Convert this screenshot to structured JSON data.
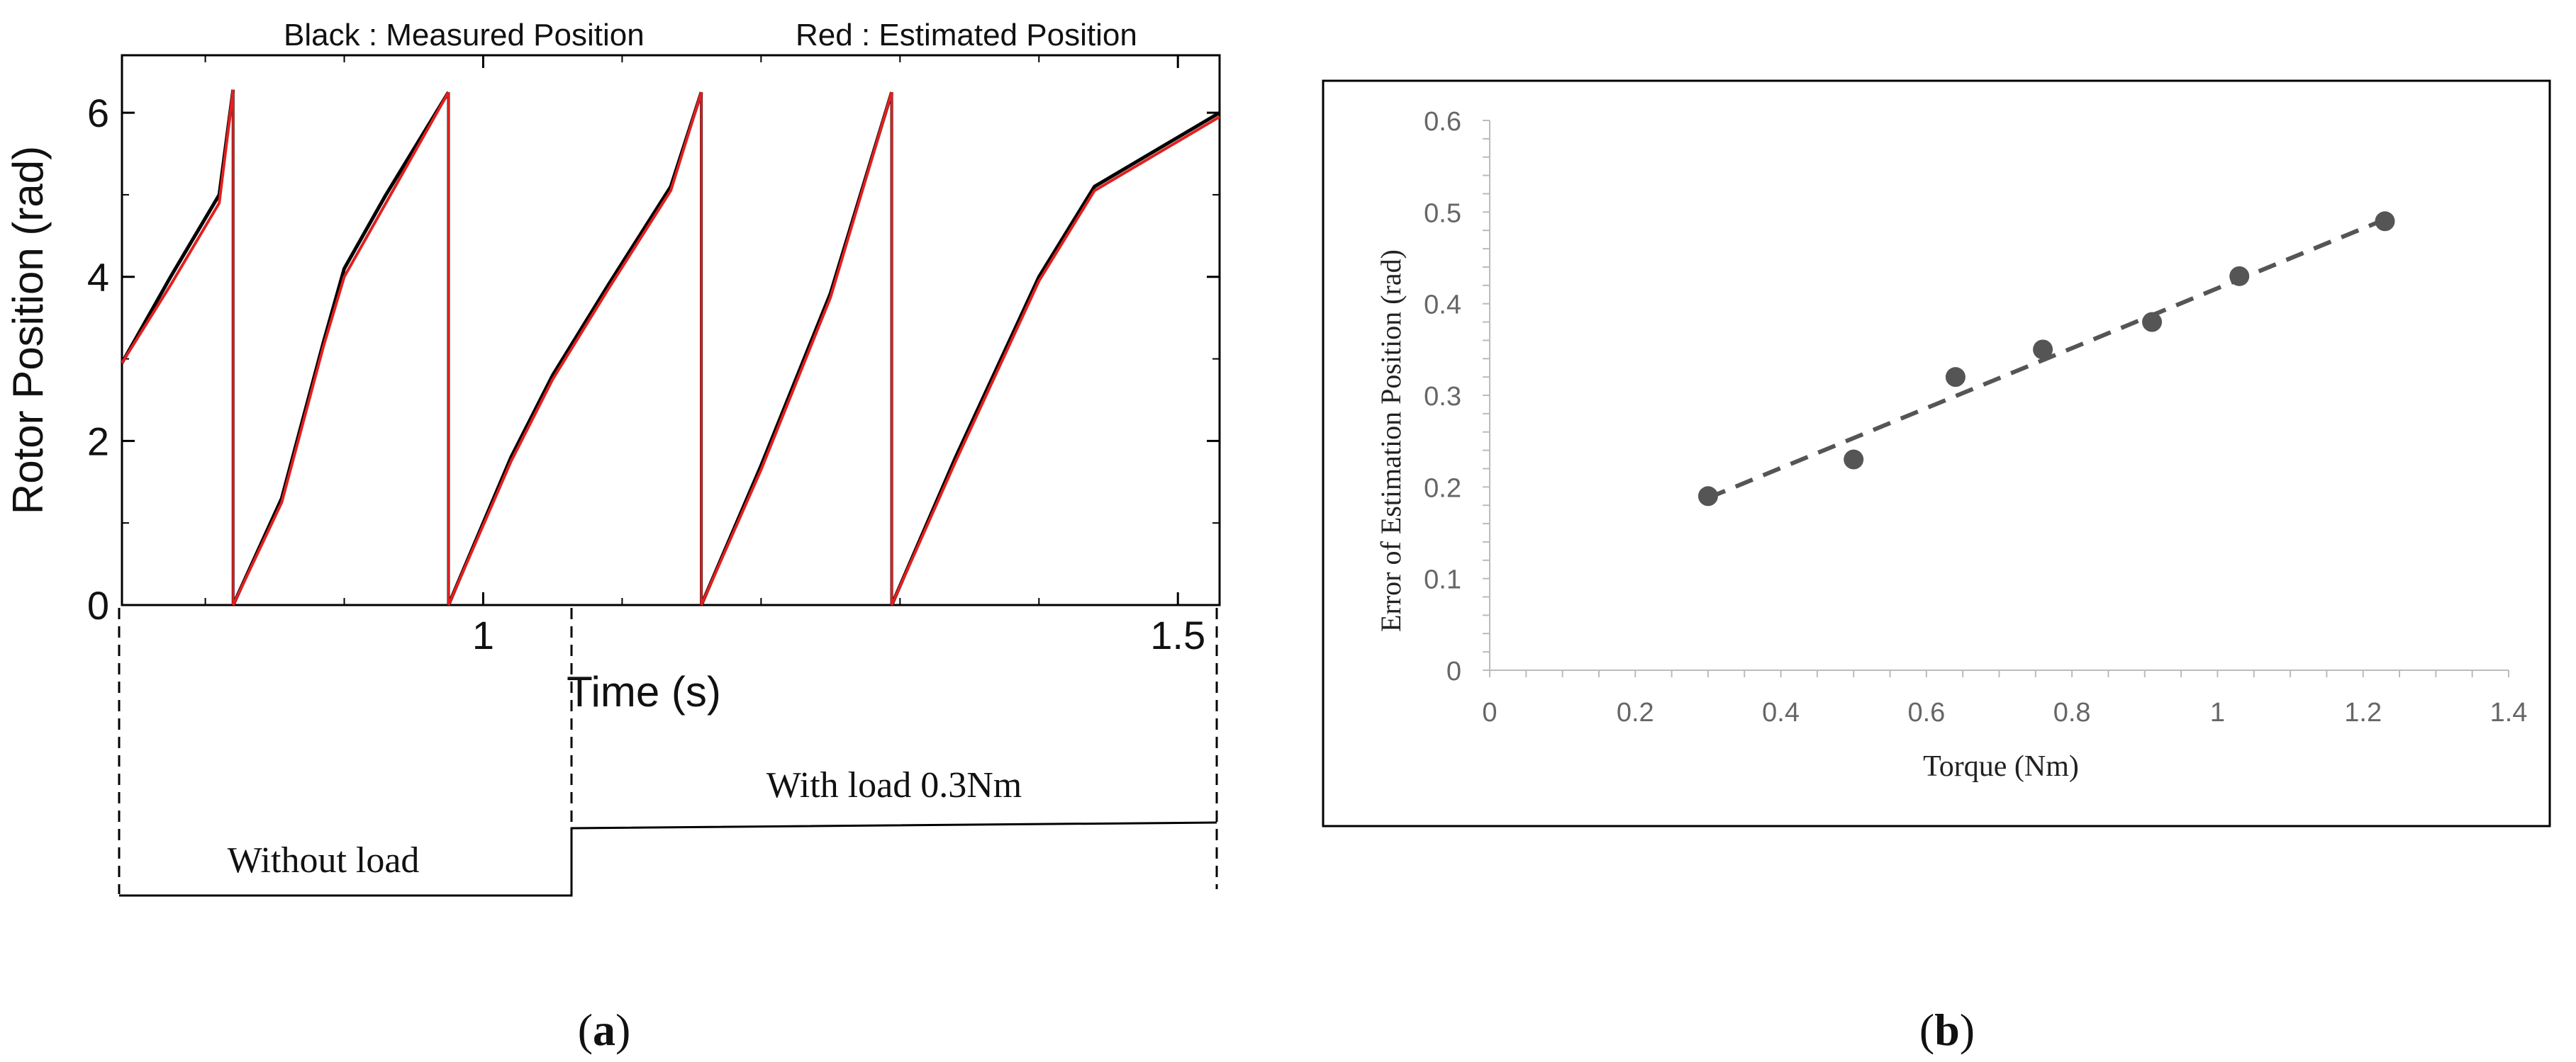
{
  "panel_labels": {
    "a_open": "(",
    "a_letter": "a",
    "a_close": ")",
    "b_open": "(",
    "b_letter": "b",
    "b_close": ")"
  },
  "chart_data": [
    {
      "type": "line",
      "legend": {
        "measured": "Black : Measured Position",
        "estimated": "Red : Estimated Position"
      },
      "xlabel": "Time (s)",
      "ylabel": "Rotor Position (rad)",
      "xlim": [
        0.74,
        1.53
      ],
      "ylim": [
        0,
        6.7
      ],
      "x_ticks": [
        1,
        1.5
      ],
      "x_tick_labels": [
        "1",
        "1.5"
      ],
      "y_ticks": [
        0,
        2,
        4,
        6
      ],
      "y_tick_labels": [
        "0",
        "2",
        "4",
        "6"
      ],
      "series": [
        {
          "color": "#000000",
          "segments": [
            [
              [
                0.74,
                2.95
              ],
              [
                0.775,
                4.0
              ],
              [
                0.81,
                5.0
              ],
              [
                0.82,
                6.28
              ]
            ],
            [
              [
                0.82,
                0.0
              ],
              [
                0.855,
                1.3
              ],
              [
                0.885,
                3.2
              ],
              [
                0.9,
                4.1
              ],
              [
                0.93,
                5.0
              ],
              [
                0.975,
                6.25
              ]
            ],
            [
              [
                0.975,
                0.0
              ],
              [
                1.02,
                1.8
              ],
              [
                1.05,
                2.8
              ],
              [
                1.09,
                3.9
              ],
              [
                1.135,
                5.1
              ],
              [
                1.157,
                6.25
              ]
            ],
            [
              [
                1.157,
                0.0
              ],
              [
                1.2,
                1.7
              ],
              [
                1.25,
                3.8
              ],
              [
                1.294,
                6.25
              ]
            ],
            [
              [
                1.294,
                0.0
              ],
              [
                1.34,
                1.8
              ],
              [
                1.4,
                4.0
              ],
              [
                1.44,
                5.1
              ],
              [
                1.53,
                6.0
              ]
            ]
          ]
        },
        {
          "color": "#e02020",
          "segments": [
            [
              [
                0.74,
                2.95
              ],
              [
                0.775,
                3.9
              ],
              [
                0.81,
                4.9
              ],
              [
                0.82,
                6.28
              ]
            ],
            [
              [
                0.82,
                0.0
              ],
              [
                0.855,
                1.25
              ],
              [
                0.885,
                3.15
              ],
              [
                0.9,
                4.0
              ],
              [
                0.93,
                4.9
              ],
              [
                0.975,
                6.25
              ]
            ],
            [
              [
                0.975,
                0.0
              ],
              [
                1.02,
                1.75
              ],
              [
                1.05,
                2.75
              ],
              [
                1.09,
                3.85
              ],
              [
                1.135,
                5.05
              ],
              [
                1.157,
                6.25
              ]
            ],
            [
              [
                1.157,
                0.0
              ],
              [
                1.2,
                1.65
              ],
              [
                1.25,
                3.75
              ],
              [
                1.294,
                6.25
              ]
            ],
            [
              [
                1.294,
                0.0
              ],
              [
                1.34,
                1.75
              ],
              [
                1.4,
                3.95
              ],
              [
                1.44,
                5.05
              ],
              [
                1.53,
                5.95
              ]
            ]
          ]
        }
      ],
      "load_annotation": {
        "without_label": "Without load",
        "with_label": "With load 0.3Nm",
        "switch_x": 0.975
      }
    },
    {
      "type": "scatter",
      "xlabel": "Torque (Nm)",
      "ylabel": "Error of Estimation Position (rad)",
      "xlim": [
        0,
        1.4
      ],
      "ylim": [
        0,
        0.6
      ],
      "x_ticks": [
        0,
        0.2,
        0.4,
        0.6,
        0.8,
        1,
        1.2,
        1.4
      ],
      "x_tick_labels": [
        "0",
        "0.2",
        "0.4",
        "0.6",
        "0.8",
        "1",
        "1.2",
        "1.4"
      ],
      "y_ticks": [
        0,
        0.1,
        0.2,
        0.3,
        0.4,
        0.5,
        0.6
      ],
      "y_tick_labels": [
        "0",
        "0.1",
        "0.2",
        "0.3",
        "0.4",
        "0.5",
        "0.6"
      ],
      "points": [
        {
          "x": 0.3,
          "y": 0.19
        },
        {
          "x": 0.5,
          "y": 0.23
        },
        {
          "x": 0.64,
          "y": 0.32
        },
        {
          "x": 0.76,
          "y": 0.35
        },
        {
          "x": 0.91,
          "y": 0.38
        },
        {
          "x": 1.03,
          "y": 0.43
        },
        {
          "x": 1.23,
          "y": 0.49
        }
      ],
      "trendline": {
        "x": [
          0.3,
          1.23
        ],
        "y": [
          0.188,
          0.492
        ],
        "style": "dashed"
      },
      "grid": false
    }
  ]
}
